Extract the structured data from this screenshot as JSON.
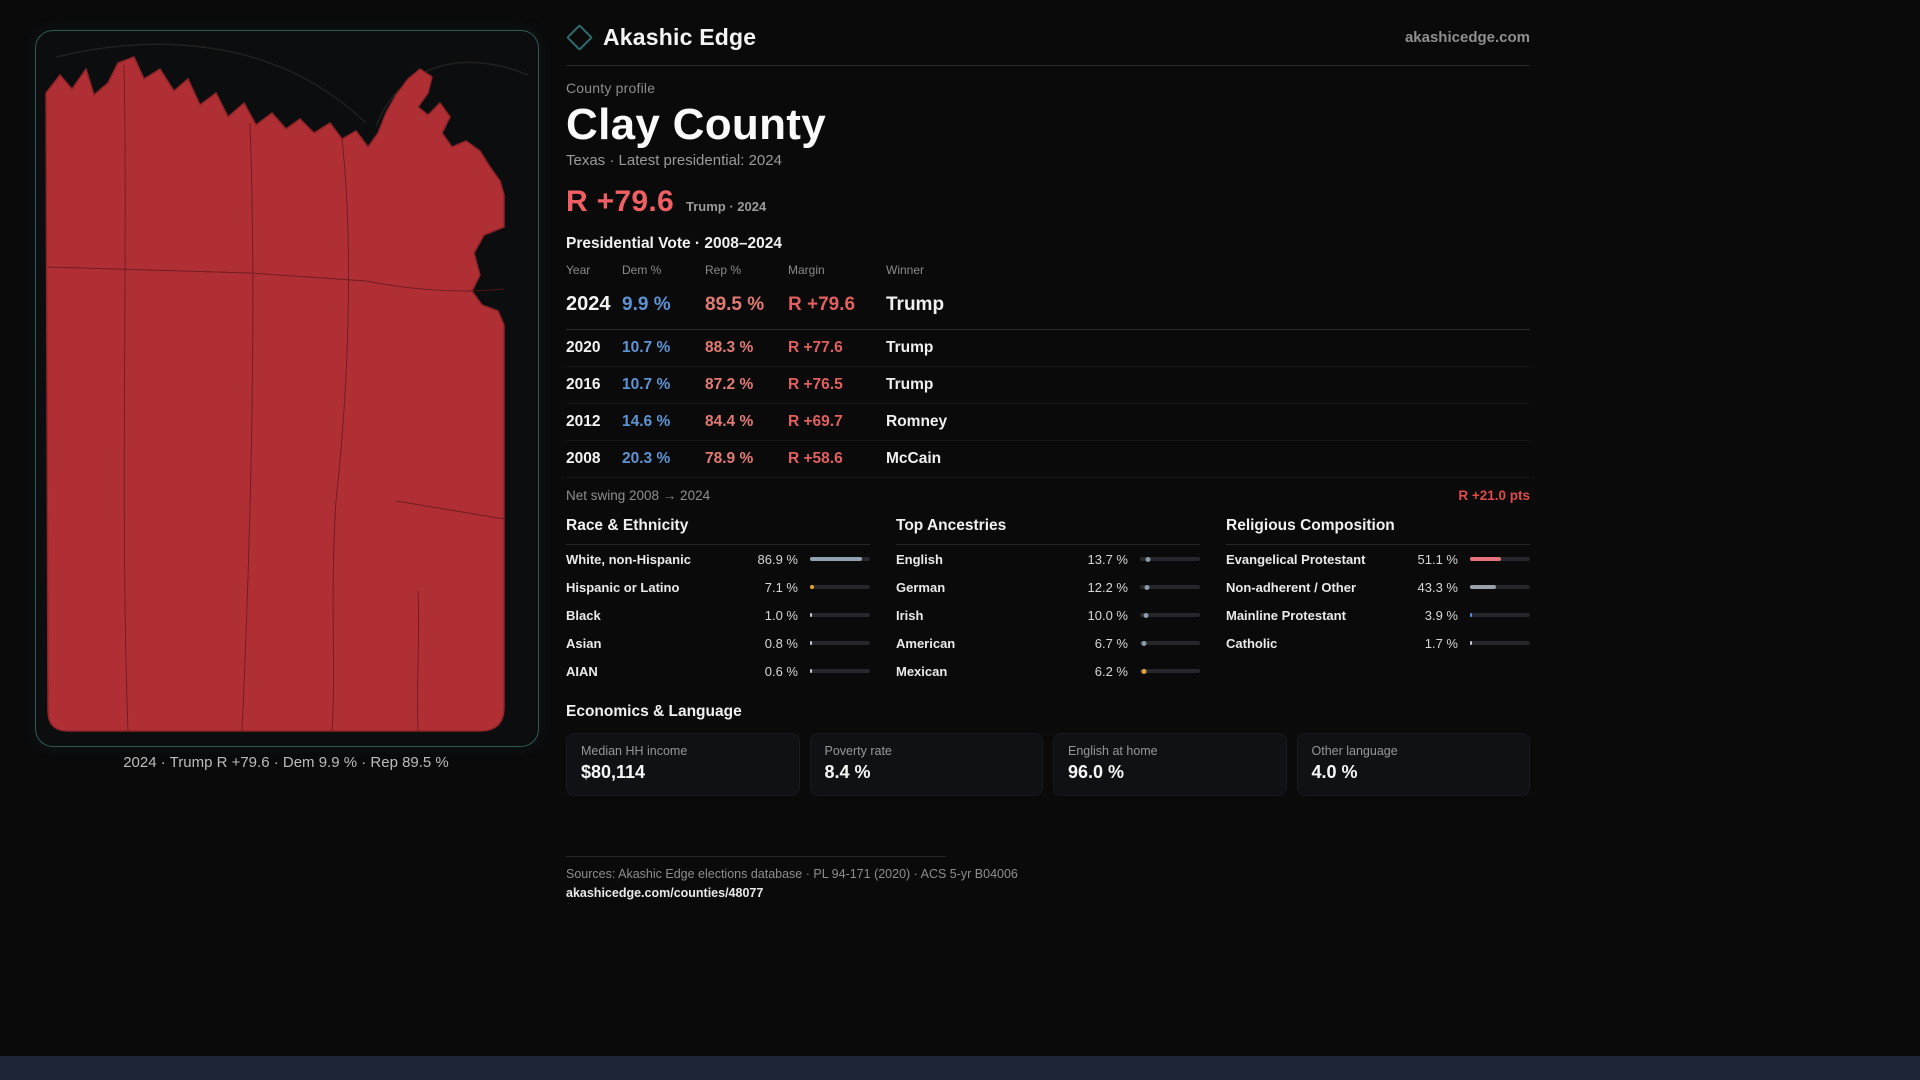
{
  "header": {
    "brand": "Akashic Edge",
    "site": "akashicedge.com"
  },
  "profile": {
    "kicker": "County profile",
    "title": "Clay County",
    "subtitle": "Texas · Latest presidential: 2024",
    "headline_margin": "R +79.6",
    "headline_note": "Trump · 2024"
  },
  "map": {
    "caption": "2024 · Trump R +79.6 · Dem 9.9 % · Rep 89.5 %",
    "fill_color": "#b02f35",
    "panel_border_color": "#5aafb2"
  },
  "vote_table": {
    "title": "Presidential Vote · 2008–2024",
    "columns": [
      "Year",
      "Dem %",
      "Rep %",
      "Margin",
      "Winner"
    ],
    "rows": [
      {
        "year": "2024",
        "dem": "9.9 %",
        "rep": "89.5 %",
        "margin": "R +79.6",
        "winner": "Trump",
        "emphasis": true
      },
      {
        "year": "2020",
        "dem": "10.7 %",
        "rep": "88.3 %",
        "margin": "R +77.6",
        "winner": "Trump"
      },
      {
        "year": "2016",
        "dem": "10.7 %",
        "rep": "87.2 %",
        "margin": "R +76.5",
        "winner": "Trump"
      },
      {
        "year": "2012",
        "dem": "14.6 %",
        "rep": "84.4 %",
        "margin": "R +69.7",
        "winner": "Romney"
      },
      {
        "year": "2008",
        "dem": "20.3 %",
        "rep": "78.9 %",
        "margin": "R +58.6",
        "winner": "McCain"
      }
    ],
    "net_swing_label": "Net swing 2008 → 2024",
    "net_swing_value": "R +21.0 pts"
  },
  "demographics": {
    "sections": [
      {
        "title": "Race & Ethnicity",
        "marker": "bar",
        "rows": [
          {
            "label": "White, non-Hispanic",
            "value": "86.9 %",
            "pct": 86.9,
            "color": "#93a2b3"
          },
          {
            "label": "Hispanic or Latino",
            "value": "7.1 %",
            "pct": 7.1,
            "color": "#e2a23b"
          },
          {
            "label": "Black",
            "value": "1.0 %",
            "pct": 1.0,
            "color": "#c7cbd1"
          },
          {
            "label": "Asian",
            "value": "0.8 %",
            "pct": 0.8,
            "color": "#c7cbd1"
          },
          {
            "label": "AIAN",
            "value": "0.6 %",
            "pct": 0.6,
            "color": "#c7cbd1"
          }
        ]
      },
      {
        "title": "Top Ancestries",
        "marker": "dot",
        "rows": [
          {
            "label": "English",
            "value": "13.7 %",
            "pct": 13.7,
            "color": "#8b9aab"
          },
          {
            "label": "German",
            "value": "12.2 %",
            "pct": 12.2,
            "color": "#8b9aab"
          },
          {
            "label": "Irish",
            "value": "10.0 %",
            "pct": 10.0,
            "color": "#8b9aab"
          },
          {
            "label": "American",
            "value": "6.7 %",
            "pct": 6.7,
            "color": "#8b9aab"
          },
          {
            "label": "Mexican",
            "value": "6.2 %",
            "pct": 6.2,
            "color": "#e2a23b"
          }
        ]
      },
      {
        "title": "Religious Composition",
        "marker": "bar",
        "rows": [
          {
            "label": "Evangelical Protestant",
            "value": "51.1 %",
            "pct": 51.1,
            "color": "#e4737e"
          },
          {
            "label": "Non-adherent / Other",
            "value": "43.3 %",
            "pct": 43.3,
            "color": "#9aa1a9"
          },
          {
            "label": "Mainline Protestant",
            "value": "3.9 %",
            "pct": 3.9,
            "color": "#5f8fd9"
          },
          {
            "label": "Catholic",
            "value": "1.7 %",
            "pct": 1.7,
            "color": "#c7cbd1"
          }
        ]
      }
    ]
  },
  "economics": {
    "title": "Economics & Language",
    "cards": [
      {
        "label": "Median HH income",
        "value": "$80,114"
      },
      {
        "label": "Poverty rate",
        "value": "8.4 %"
      },
      {
        "label": "English at home",
        "value": "96.0 %"
      },
      {
        "label": "Other language",
        "value": "4.0 %"
      }
    ]
  },
  "footer": {
    "sources": "Sources: Akashic Edge elections database · PL 94-171 (2020) · ACS 5-yr B04006",
    "permalink": "akashicedge.com/counties/48077"
  },
  "colors": {
    "dem_blue": "#5e93d4",
    "rep_red": "#e27b74",
    "margin_red": "#e25f5f",
    "headline_red": "#ef5f63"
  }
}
